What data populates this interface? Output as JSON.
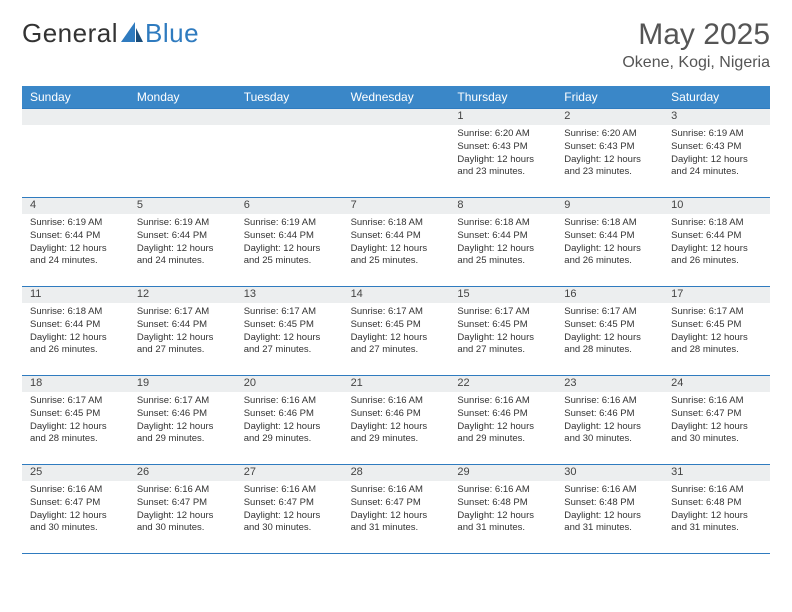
{
  "logo": {
    "text1": "General",
    "text2": "Blue"
  },
  "title": "May 2025",
  "location": "Okene, Kogi, Nigeria",
  "colors": {
    "header_bg": "#3a87c8",
    "header_text": "#ffffff",
    "border": "#2f7bbf",
    "daynum_bg": "#eceeef",
    "body_text": "#333333",
    "title_text": "#555555"
  },
  "day_names": [
    "Sunday",
    "Monday",
    "Tuesday",
    "Wednesday",
    "Thursday",
    "Friday",
    "Saturday"
  ],
  "weeks": [
    [
      {
        "n": "",
        "sr": "",
        "ss": "",
        "dl": ""
      },
      {
        "n": "",
        "sr": "",
        "ss": "",
        "dl": ""
      },
      {
        "n": "",
        "sr": "",
        "ss": "",
        "dl": ""
      },
      {
        "n": "",
        "sr": "",
        "ss": "",
        "dl": ""
      },
      {
        "n": "1",
        "sr": "Sunrise: 6:20 AM",
        "ss": "Sunset: 6:43 PM",
        "dl": "Daylight: 12 hours and 23 minutes."
      },
      {
        "n": "2",
        "sr": "Sunrise: 6:20 AM",
        "ss": "Sunset: 6:43 PM",
        "dl": "Daylight: 12 hours and 23 minutes."
      },
      {
        "n": "3",
        "sr": "Sunrise: 6:19 AM",
        "ss": "Sunset: 6:43 PM",
        "dl": "Daylight: 12 hours and 24 minutes."
      }
    ],
    [
      {
        "n": "4",
        "sr": "Sunrise: 6:19 AM",
        "ss": "Sunset: 6:44 PM",
        "dl": "Daylight: 12 hours and 24 minutes."
      },
      {
        "n": "5",
        "sr": "Sunrise: 6:19 AM",
        "ss": "Sunset: 6:44 PM",
        "dl": "Daylight: 12 hours and 24 minutes."
      },
      {
        "n": "6",
        "sr": "Sunrise: 6:19 AM",
        "ss": "Sunset: 6:44 PM",
        "dl": "Daylight: 12 hours and 25 minutes."
      },
      {
        "n": "7",
        "sr": "Sunrise: 6:18 AM",
        "ss": "Sunset: 6:44 PM",
        "dl": "Daylight: 12 hours and 25 minutes."
      },
      {
        "n": "8",
        "sr": "Sunrise: 6:18 AM",
        "ss": "Sunset: 6:44 PM",
        "dl": "Daylight: 12 hours and 25 minutes."
      },
      {
        "n": "9",
        "sr": "Sunrise: 6:18 AM",
        "ss": "Sunset: 6:44 PM",
        "dl": "Daylight: 12 hours and 26 minutes."
      },
      {
        "n": "10",
        "sr": "Sunrise: 6:18 AM",
        "ss": "Sunset: 6:44 PM",
        "dl": "Daylight: 12 hours and 26 minutes."
      }
    ],
    [
      {
        "n": "11",
        "sr": "Sunrise: 6:18 AM",
        "ss": "Sunset: 6:44 PM",
        "dl": "Daylight: 12 hours and 26 minutes."
      },
      {
        "n": "12",
        "sr": "Sunrise: 6:17 AM",
        "ss": "Sunset: 6:44 PM",
        "dl": "Daylight: 12 hours and 27 minutes."
      },
      {
        "n": "13",
        "sr": "Sunrise: 6:17 AM",
        "ss": "Sunset: 6:45 PM",
        "dl": "Daylight: 12 hours and 27 minutes."
      },
      {
        "n": "14",
        "sr": "Sunrise: 6:17 AM",
        "ss": "Sunset: 6:45 PM",
        "dl": "Daylight: 12 hours and 27 minutes."
      },
      {
        "n": "15",
        "sr": "Sunrise: 6:17 AM",
        "ss": "Sunset: 6:45 PM",
        "dl": "Daylight: 12 hours and 27 minutes."
      },
      {
        "n": "16",
        "sr": "Sunrise: 6:17 AM",
        "ss": "Sunset: 6:45 PM",
        "dl": "Daylight: 12 hours and 28 minutes."
      },
      {
        "n": "17",
        "sr": "Sunrise: 6:17 AM",
        "ss": "Sunset: 6:45 PM",
        "dl": "Daylight: 12 hours and 28 minutes."
      }
    ],
    [
      {
        "n": "18",
        "sr": "Sunrise: 6:17 AM",
        "ss": "Sunset: 6:45 PM",
        "dl": "Daylight: 12 hours and 28 minutes."
      },
      {
        "n": "19",
        "sr": "Sunrise: 6:17 AM",
        "ss": "Sunset: 6:46 PM",
        "dl": "Daylight: 12 hours and 29 minutes."
      },
      {
        "n": "20",
        "sr": "Sunrise: 6:16 AM",
        "ss": "Sunset: 6:46 PM",
        "dl": "Daylight: 12 hours and 29 minutes."
      },
      {
        "n": "21",
        "sr": "Sunrise: 6:16 AM",
        "ss": "Sunset: 6:46 PM",
        "dl": "Daylight: 12 hours and 29 minutes."
      },
      {
        "n": "22",
        "sr": "Sunrise: 6:16 AM",
        "ss": "Sunset: 6:46 PM",
        "dl": "Daylight: 12 hours and 29 minutes."
      },
      {
        "n": "23",
        "sr": "Sunrise: 6:16 AM",
        "ss": "Sunset: 6:46 PM",
        "dl": "Daylight: 12 hours and 30 minutes."
      },
      {
        "n": "24",
        "sr": "Sunrise: 6:16 AM",
        "ss": "Sunset: 6:47 PM",
        "dl": "Daylight: 12 hours and 30 minutes."
      }
    ],
    [
      {
        "n": "25",
        "sr": "Sunrise: 6:16 AM",
        "ss": "Sunset: 6:47 PM",
        "dl": "Daylight: 12 hours and 30 minutes."
      },
      {
        "n": "26",
        "sr": "Sunrise: 6:16 AM",
        "ss": "Sunset: 6:47 PM",
        "dl": "Daylight: 12 hours and 30 minutes."
      },
      {
        "n": "27",
        "sr": "Sunrise: 6:16 AM",
        "ss": "Sunset: 6:47 PM",
        "dl": "Daylight: 12 hours and 30 minutes."
      },
      {
        "n": "28",
        "sr": "Sunrise: 6:16 AM",
        "ss": "Sunset: 6:47 PM",
        "dl": "Daylight: 12 hours and 31 minutes."
      },
      {
        "n": "29",
        "sr": "Sunrise: 6:16 AM",
        "ss": "Sunset: 6:48 PM",
        "dl": "Daylight: 12 hours and 31 minutes."
      },
      {
        "n": "30",
        "sr": "Sunrise: 6:16 AM",
        "ss": "Sunset: 6:48 PM",
        "dl": "Daylight: 12 hours and 31 minutes."
      },
      {
        "n": "31",
        "sr": "Sunrise: 6:16 AM",
        "ss": "Sunset: 6:48 PM",
        "dl": "Daylight: 12 hours and 31 minutes."
      }
    ]
  ]
}
